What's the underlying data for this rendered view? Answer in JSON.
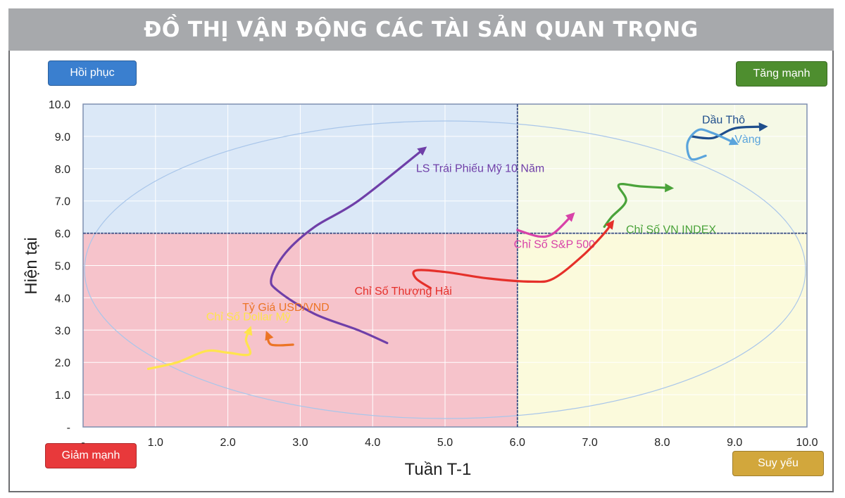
{
  "title": "ĐỒ THỊ VẬN ĐỘNG CÁC TÀI SẢN QUAN TRỌNG",
  "quadrants": {
    "top_left": {
      "label": "Hồi phục",
      "color": "#3a7fcf"
    },
    "top_right": {
      "label": "Tăng mạnh",
      "color": "#4e8e2f"
    },
    "bottom_left": {
      "label": "Giảm mạnh",
      "color": "#e8393b"
    },
    "bottom_right": {
      "label": "Suy yếu",
      "color": "#d2a73c"
    }
  },
  "chart_data": {
    "type": "line",
    "xlabel": "Tuần T-1",
    "ylabel": "Hiện tại",
    "xlim": [
      0,
      10
    ],
    "ylim": [
      0,
      10
    ],
    "x_ticks": [
      "-",
      "1.0",
      "2.0",
      "3.0",
      "4.0",
      "5.0",
      "6.0",
      "7.0",
      "8.0",
      "9.0",
      "10.0"
    ],
    "y_ticks": [
      "-",
      "1.0",
      "2.0",
      "3.0",
      "4.0",
      "5.0",
      "6.0",
      "7.0",
      "8.0",
      "9.0",
      "10.0"
    ],
    "grid": true,
    "quadrant_split": {
      "x": 6.0,
      "y": 6.0
    },
    "quadrant_fill": {
      "top_left": "#dbe8f7",
      "top_right": "#f5f9e6",
      "bottom_left": "#f6c3cb",
      "bottom_right": "#fbfadc"
    },
    "series": [
      {
        "name": "LS Trái Phiếu Mỹ 10 Năm",
        "color": "#6f3fa8",
        "points": [
          [
            4.2,
            2.6
          ],
          [
            3.8,
            3.0
          ],
          [
            3.2,
            3.5
          ],
          [
            2.7,
            4.2
          ],
          [
            2.6,
            4.6
          ],
          [
            2.8,
            5.4
          ],
          [
            3.2,
            6.2
          ],
          [
            3.8,
            7.0
          ],
          [
            4.7,
            8.6
          ]
        ],
        "label_at": [
          4.6,
          7.9
        ]
      },
      {
        "name": "Dầu Thô",
        "color": "#1f4e8c",
        "points": [
          [
            8.4,
            9.0
          ],
          [
            8.7,
            8.95
          ],
          [
            9.0,
            9.25
          ],
          [
            9.4,
            9.3
          ]
        ],
        "label_at": [
          8.55,
          9.4
        ]
      },
      {
        "name": "Vàng",
        "color": "#5aa4dc",
        "points": [
          [
            8.6,
            8.4
          ],
          [
            8.4,
            8.3
          ],
          [
            8.35,
            8.8
          ],
          [
            8.5,
            9.2
          ],
          [
            8.7,
            9.1
          ],
          [
            9.0,
            8.8
          ]
        ],
        "label_at": [
          9.0,
          8.8
        ]
      },
      {
        "name": "Chỉ Số VN INDEX",
        "color": "#4aa33a",
        "points": [
          [
            7.2,
            6.2
          ],
          [
            7.3,
            6.5
          ],
          [
            7.5,
            7.0
          ],
          [
            7.4,
            7.5
          ],
          [
            7.7,
            7.45
          ],
          [
            8.1,
            7.4
          ]
        ],
        "label_at": [
          7.5,
          6.0
        ]
      },
      {
        "name": "Chỉ Số S&P 500",
        "color": "#d842a8",
        "points": [
          [
            6.0,
            6.1
          ],
          [
            6.3,
            5.9
          ],
          [
            6.5,
            6.0
          ],
          [
            6.75,
            6.55
          ]
        ],
        "label_at": [
          5.95,
          5.55
        ]
      },
      {
        "name": "Chỉ Số Thượng Hải",
        "color": "#e5302a",
        "points": [
          [
            4.8,
            4.3
          ],
          [
            4.6,
            4.6
          ],
          [
            4.6,
            4.85
          ],
          [
            5.0,
            4.8
          ],
          [
            5.6,
            4.6
          ],
          [
            6.2,
            4.5
          ],
          [
            6.5,
            4.6
          ],
          [
            6.9,
            5.3
          ],
          [
            7.2,
            6.0
          ],
          [
            7.3,
            6.3
          ]
        ],
        "label_at": [
          3.75,
          4.1
        ]
      },
      {
        "name": "Tỷ Giá USD/VND",
        "color": "#ec7425",
        "points": [
          [
            2.9,
            2.55
          ],
          [
            2.6,
            2.55
          ],
          [
            2.55,
            2.85
          ]
        ],
        "label_at": [
          2.2,
          3.6
        ]
      },
      {
        "name": "Chỉ Số Dollar Mỹ",
        "color": "#ffe44d",
        "points": [
          [
            0.9,
            1.8
          ],
          [
            1.3,
            2.0
          ],
          [
            1.7,
            2.35
          ],
          [
            2.0,
            2.3
          ],
          [
            2.3,
            2.25
          ],
          [
            2.25,
            2.7
          ],
          [
            2.3,
            3.0
          ]
        ],
        "label_at": [
          1.7,
          3.3
        ]
      }
    ]
  }
}
